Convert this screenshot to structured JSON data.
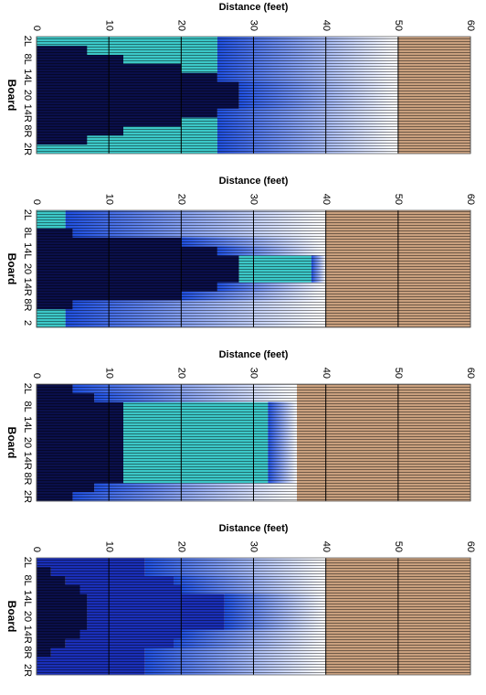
{
  "chart_data": [
    {
      "type": "bar",
      "orientation": "horizontal",
      "stacked": true,
      "title": "Distance (feet)",
      "ylabel": "Board",
      "categories": [
        "2L",
        null,
        "8L",
        null,
        "14L",
        null,
        "20",
        null,
        "14R",
        null,
        "8R",
        null,
        "2R"
      ],
      "xlim": [
        0,
        60
      ],
      "xticks": [
        0,
        10,
        20,
        30,
        40,
        50,
        60
      ],
      "grid": true,
      "series": [
        {
          "color": "#0a0f4a",
          "values": [
            0,
            7,
            12,
            20,
            25,
            28,
            28,
            28,
            25,
            20,
            12,
            7,
            0
          ]
        },
        {
          "color": "#3cc8c8",
          "values": [
            25,
            18,
            13,
            5,
            0,
            0,
            0,
            0,
            0,
            5,
            13,
            18,
            25
          ]
        },
        {
          "color": "#1f4fe0",
          "fade": true,
          "values": [
            25,
            25,
            25,
            25,
            25,
            22,
            22,
            22,
            25,
            25,
            25,
            25,
            25
          ]
        },
        {
          "color": "#c9a07e",
          "values": [
            10,
            10,
            10,
            10,
            10,
            10,
            10,
            10,
            10,
            10,
            10,
            10,
            10
          ]
        }
      ]
    },
    {
      "type": "bar",
      "orientation": "horizontal",
      "stacked": true,
      "title": "Distance (feet)",
      "ylabel": "Board",
      "categories": [
        "2L",
        null,
        "8L",
        null,
        "14L",
        null,
        "20",
        null,
        "14R",
        null,
        "8R",
        null,
        "2"
      ],
      "xlim": [
        0,
        60
      ],
      "xticks": [
        0,
        10,
        20,
        30,
        40,
        50,
        60
      ],
      "grid": true,
      "series": [
        {
          "color": "#0a0f4a",
          "values": [
            0,
            0,
            5,
            20,
            25,
            28,
            28,
            28,
            25,
            20,
            5,
            0,
            0
          ]
        },
        {
          "color": "#3cc8c8",
          "values": [
            4,
            4,
            0,
            0,
            0,
            10,
            10,
            10,
            0,
            0,
            0,
            4,
            4
          ]
        },
        {
          "color": "#1f4fe0",
          "fade": true,
          "values": [
            36,
            36,
            35,
            20,
            15,
            2,
            2,
            2,
            15,
            20,
            35,
            36,
            36
          ]
        },
        {
          "color": "#c9a07e",
          "values": [
            20,
            20,
            20,
            20,
            20,
            20,
            20,
            20,
            20,
            20,
            20,
            20,
            20
          ]
        }
      ]
    },
    {
      "type": "bar",
      "orientation": "horizontal",
      "stacked": true,
      "title": "Distance (feet)",
      "ylabel": "Board",
      "categories": [
        "2L",
        null,
        "8L",
        null,
        "14L",
        null,
        "20",
        null,
        "14R",
        null,
        "8R",
        null,
        "2R"
      ],
      "xlim": [
        0,
        60
      ],
      "xticks": [
        0,
        10,
        20,
        30,
        40,
        50,
        60
      ],
      "grid": true,
      "series": [
        {
          "color": "#0a0f4a",
          "values": [
            5,
            8,
            12,
            12,
            12,
            12,
            12,
            12,
            12,
            12,
            12,
            8,
            5
          ]
        },
        {
          "color": "#3cc8c8",
          "values": [
            0,
            0,
            20,
            20,
            20,
            20,
            20,
            20,
            20,
            20,
            20,
            0,
            0
          ]
        },
        {
          "color": "#1f4fe0",
          "fade": true,
          "values": [
            31,
            28,
            4,
            4,
            4,
            4,
            4,
            4,
            4,
            4,
            4,
            28,
            31
          ]
        },
        {
          "color": "#c9a07e",
          "values": [
            24,
            24,
            24,
            24,
            24,
            24,
            24,
            24,
            24,
            24,
            24,
            24,
            24
          ]
        }
      ]
    },
    {
      "type": "bar",
      "orientation": "horizontal",
      "stacked": true,
      "title": "Distance (feet)",
      "ylabel": "Board",
      "categories": [
        "2L",
        null,
        "8L",
        null,
        "14L",
        null,
        "20",
        null,
        "14R",
        null,
        "8R",
        null,
        "2R"
      ],
      "xlim": [
        0,
        60
      ],
      "xticks": [
        0,
        10,
        20,
        30,
        40,
        50,
        60
      ],
      "grid": true,
      "series": [
        {
          "color": "#0a0f4a",
          "values": [
            0,
            2,
            4,
            6,
            7,
            7,
            7,
            7,
            6,
            4,
            2,
            0,
            0
          ]
        },
        {
          "color": "#1a2fb8",
          "values": [
            15,
            13,
            15,
            14,
            19,
            19,
            19,
            19,
            14,
            15,
            13,
            15,
            15
          ]
        },
        {
          "color": "#1f4fe0",
          "fade": true,
          "values": [
            25,
            25,
            21,
            20,
            14,
            14,
            14,
            14,
            20,
            21,
            25,
            25,
            25
          ]
        },
        {
          "color": "#c9a07e",
          "values": [
            20,
            20,
            20,
            20,
            20,
            20,
            20,
            20,
            20,
            20,
            20,
            20,
            20
          ]
        }
      ]
    }
  ]
}
